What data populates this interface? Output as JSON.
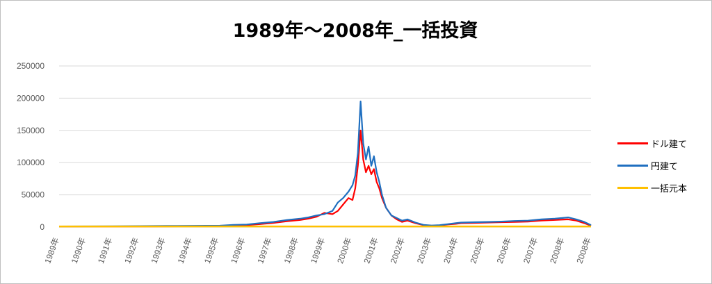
{
  "chart_data": {
    "type": "line",
    "title": "1989年～2008年_一括投資",
    "xlabel": "",
    "ylabel": "",
    "ylim": [
      0,
      250000
    ],
    "y_ticks": [
      0,
      50000,
      100000,
      150000,
      200000,
      250000
    ],
    "x_ticks": [
      "1989年",
      "1990年",
      "1991年",
      "1992年",
      "1993年",
      "1994年",
      "1995年",
      "1996年",
      "1997年",
      "1998年",
      "1999年",
      "2000年",
      "2001年",
      "2002年",
      "2003年",
      "2004年",
      "2005年",
      "2006年",
      "2007年",
      "2008年",
      "2008年"
    ],
    "grid": true,
    "legend_position": "right",
    "x": [
      1989.0,
      1990.0,
      1991.0,
      1992.0,
      1993.0,
      1994.0,
      1995.0,
      1995.5,
      1996.0,
      1996.5,
      1997.0,
      1997.5,
      1998.0,
      1998.3,
      1998.6,
      1998.9,
      1999.2,
      1999.4,
      1999.6,
      1999.8,
      1999.95,
      2000.05,
      2000.15,
      2000.25,
      2000.35,
      2000.45,
      2000.55,
      2000.65,
      2000.75,
      2000.85,
      2000.95,
      2001.05,
      2001.2,
      2001.4,
      2001.6,
      2001.8,
      2002.0,
      2002.3,
      2002.6,
      2002.9,
      2003.2,
      2003.5,
      2003.8,
      2004.0,
      2004.5,
      2005.0,
      2005.5,
      2006.0,
      2006.5,
      2007.0,
      2007.5,
      2008.0,
      2008.3,
      2008.6,
      2008.85
    ],
    "series": [
      {
        "name": "ドル建て",
        "color": "#FF0000",
        "values": [
          800,
          850,
          900,
          1000,
          1100,
          1200,
          1500,
          2000,
          3000,
          4500,
          6500,
          9000,
          11000,
          13000,
          16000,
          22000,
          20000,
          25000,
          35000,
          45000,
          42000,
          60000,
          95000,
          150000,
          105000,
          85000,
          95000,
          82000,
          90000,
          70000,
          60000,
          45000,
          30000,
          18000,
          12000,
          8000,
          10000,
          6000,
          3000,
          2000,
          2500,
          4000,
          5000,
          6000,
          6500,
          7000,
          7500,
          8000,
          8500,
          10000,
          11000,
          12000,
          10000,
          6000,
          2000
        ]
      },
      {
        "name": "円建て",
        "color": "#1F6FC0",
        "values": [
          1000,
          1100,
          1300,
          1500,
          1700,
          1900,
          2200,
          3500,
          4000,
          6000,
          8000,
          11000,
          13000,
          15000,
          18000,
          20000,
          25000,
          38000,
          45000,
          55000,
          65000,
          80000,
          115000,
          195000,
          130000,
          105000,
          125000,
          95000,
          110000,
          85000,
          70000,
          50000,
          30000,
          18000,
          14000,
          10000,
          12000,
          7000,
          3500,
          2500,
          3000,
          4500,
          6000,
          7000,
          7500,
          8000,
          8500,
          9500,
          10000,
          12000,
          13000,
          15000,
          12000,
          8000,
          3000
        ]
      },
      {
        "name": "一括元本",
        "color": "#FFC000",
        "values": [
          1000,
          1000,
          1000,
          1000,
          1000,
          1000,
          1000,
          1000,
          1000,
          1000,
          1000,
          1000,
          1000,
          1000,
          1000,
          1000,
          1000,
          1000,
          1000,
          1000,
          1000,
          1000,
          1000,
          1000,
          1000,
          1000,
          1000,
          1000,
          1000,
          1000,
          1000,
          1000,
          1000,
          1000,
          1000,
          1000,
          1000,
          1000,
          1000,
          1000,
          1000,
          1000,
          1000,
          1000,
          1000,
          1000,
          1000,
          1000,
          1000,
          1000,
          1000,
          1000,
          1000,
          1000,
          1000
        ]
      }
    ]
  }
}
